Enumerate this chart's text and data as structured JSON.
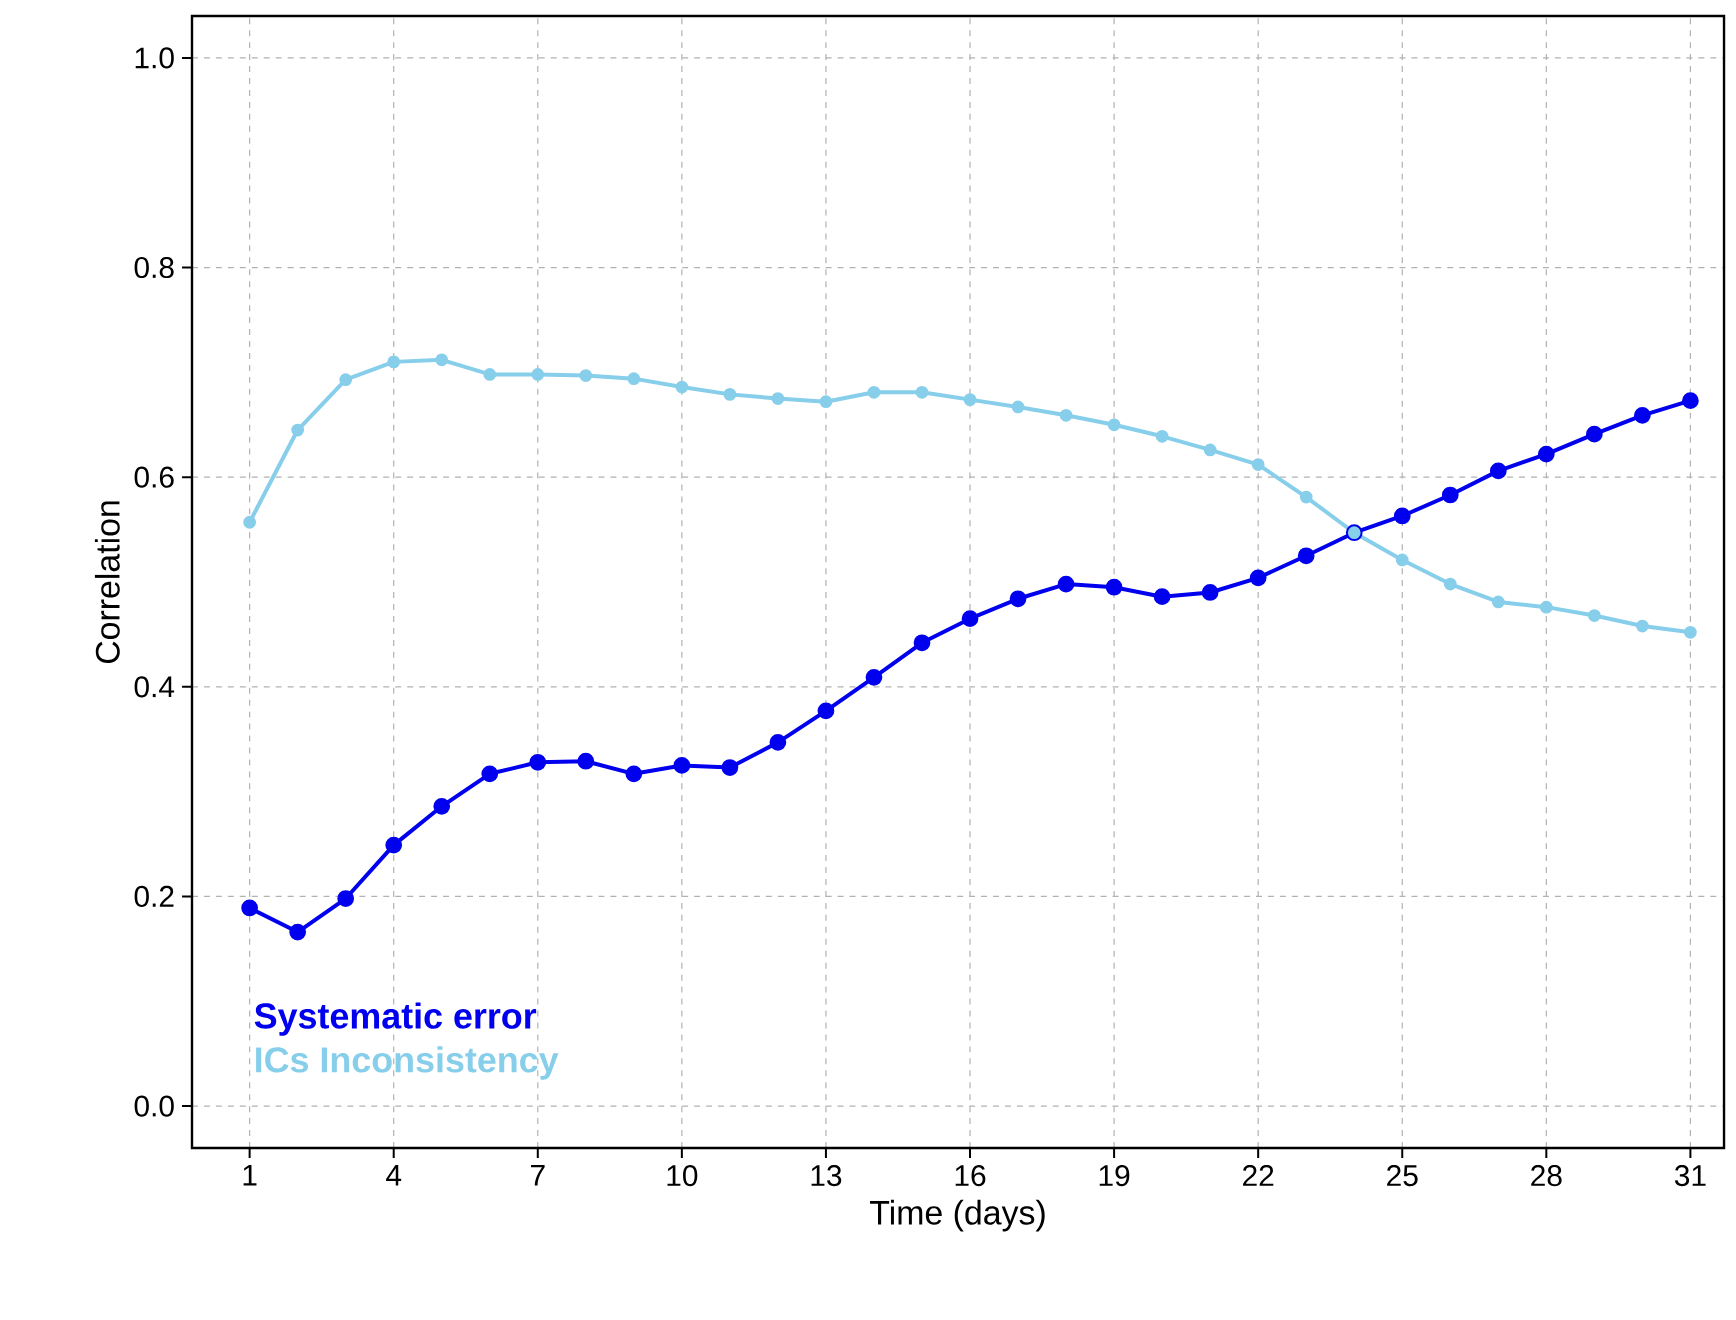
{
  "chart_data": {
    "type": "line",
    "xlabel": "Time (days)",
    "ylabel": "Correlation",
    "x": [
      1,
      2,
      3,
      4,
      5,
      6,
      7,
      8,
      9,
      10,
      11,
      12,
      13,
      14,
      15,
      16,
      17,
      18,
      19,
      20,
      21,
      22,
      23,
      24,
      25,
      26,
      27,
      28,
      29,
      30,
      31
    ],
    "series": [
      {
        "name": "Systematic error",
        "color": "#0000ee",
        "values": [
          0.189,
          0.166,
          0.198,
          0.249,
          0.286,
          0.317,
          0.328,
          0.329,
          0.317,
          0.325,
          0.323,
          0.347,
          0.377,
          0.409,
          0.442,
          0.465,
          0.484,
          0.498,
          0.495,
          0.486,
          0.49,
          0.504,
          0.525,
          0.547,
          0.563,
          0.583,
          0.606,
          0.622,
          0.641,
          0.659,
          0.673
        ]
      },
      {
        "name": "ICs Inconsistency",
        "color": "#87ceeb",
        "values": [
          0.557,
          0.645,
          0.693,
          0.71,
          0.712,
          0.698,
          0.698,
          0.697,
          0.694,
          0.686,
          0.679,
          0.675,
          0.672,
          0.681,
          0.681,
          0.674,
          0.667,
          0.659,
          0.65,
          0.639,
          0.626,
          0.612,
          0.581,
          0.547,
          0.521,
          0.498,
          0.481,
          0.476,
          0.468,
          0.458,
          0.452
        ]
      }
    ],
    "xlim": [
      -0.2,
      31.7
    ],
    "ylim": [
      -0.04,
      1.04
    ],
    "xticks": [
      1,
      4,
      7,
      10,
      13,
      16,
      19,
      22,
      25,
      28,
      31
    ],
    "yticks": [
      {
        "value": 0.0,
        "label": "0.0"
      },
      {
        "value": 0.2,
        "label": "0.2"
      },
      {
        "value": 0.4,
        "label": "0.4"
      },
      {
        "value": 0.6,
        "label": "0.6"
      },
      {
        "value": 0.8,
        "label": "0.8"
      },
      {
        "value": 1.0,
        "label": "1.0"
      }
    ],
    "grid": true,
    "legend": "bottom left",
    "marker": "circle",
    "line_style": "solid"
  }
}
